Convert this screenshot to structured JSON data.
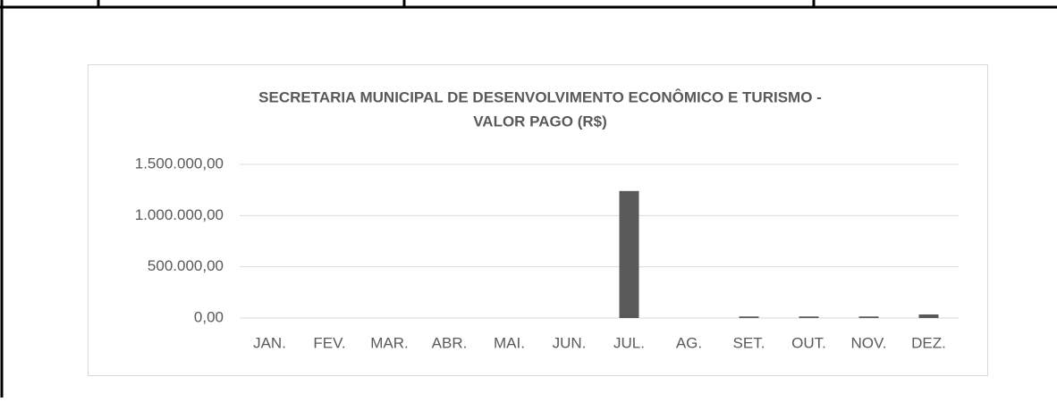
{
  "chart_data": {
    "type": "bar",
    "title": [
      "SECRETARIA MUNICIPAL DE DESENVOLVIMENTO ECONÔMICO E TURISMO -",
      "VALOR PAGO (R$)"
    ],
    "categories": [
      "JAN.",
      "FEV.",
      "MAR.",
      "ABR.",
      "MAI.",
      "JUN.",
      "JUL.",
      "AG.",
      "SET.",
      "OUT.",
      "NOV.",
      "DEZ."
    ],
    "values": [
      0,
      0,
      0,
      0,
      0,
      0,
      1240000,
      0,
      15000,
      15000,
      15000,
      35000
    ],
    "color": "#595959",
    "ylim": [
      0,
      1500000
    ],
    "yticks": [
      {
        "value": 0,
        "label": "0,00"
      },
      {
        "value": 500000,
        "label": "500.000,00"
      },
      {
        "value": 1000000,
        "label": "1.000.000,00"
      },
      {
        "value": 1500000,
        "label": "1.500.000,00"
      }
    ],
    "grid": true
  }
}
